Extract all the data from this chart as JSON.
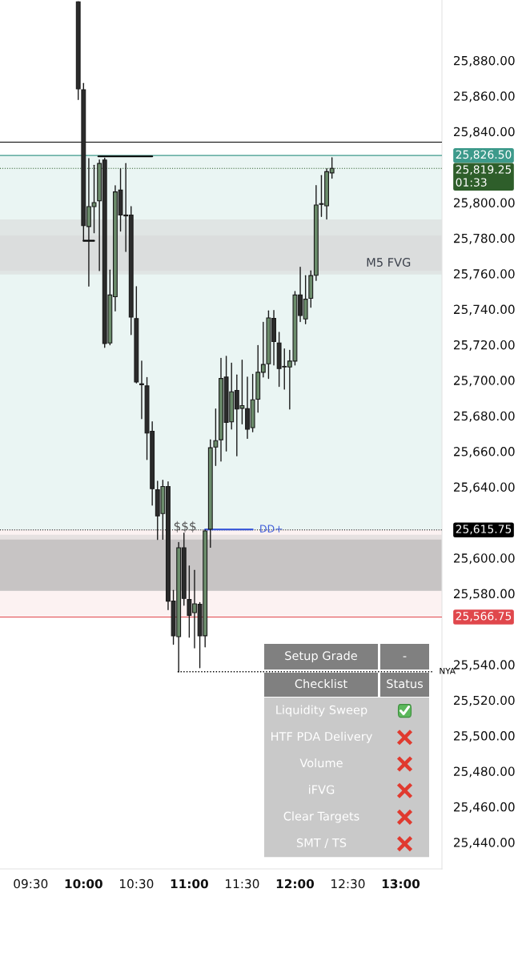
{
  "chart_data": {
    "type": "candlestick",
    "x": [
      9.95,
      10.0,
      10.05,
      10.1,
      10.15,
      10.2,
      10.25,
      10.3,
      10.35,
      10.4,
      10.45,
      10.5,
      10.55,
      10.6,
      10.65,
      10.7,
      10.75,
      10.8,
      10.85,
      10.9,
      10.95,
      11.0,
      11.05,
      11.1,
      11.15,
      11.2,
      11.25,
      11.3,
      11.35,
      11.4,
      11.45,
      11.5,
      11.55,
      11.6,
      11.65,
      11.7,
      11.75,
      11.8,
      11.85,
      11.9,
      11.95,
      12.0,
      12.05,
      12.1,
      12.15,
      12.2,
      12.25,
      12.3,
      12.35
    ],
    "ohlc": [
      [
        25913,
        25913,
        25858,
        25864
      ],
      [
        25863.5,
        25867,
        25778.4,
        25787
      ],
      [
        25786.5,
        25824.8,
        25753,
        25797.7
      ],
      [
        25797.7,
        25821,
        25783,
        25800
      ],
      [
        25801,
        25824,
        25761.7,
        25822
      ],
      [
        25824,
        25825,
        25718.5,
        25720.7
      ],
      [
        25721,
        25762,
        25720,
        25748
      ],
      [
        25747,
        25809.5,
        25739,
        25806
      ],
      [
        25807,
        25819,
        25784,
        25793
      ],
      [
        25793,
        25822,
        25772.5,
        25792.5
      ],
      [
        25793,
        25797.7,
        25725.7,
        25735.6
      ],
      [
        25734.7,
        25752.7,
        25698.5,
        25699
      ],
      [
        25698,
        25710.8,
        25678.4,
        25697.5
      ],
      [
        25696.8,
        25701.5,
        25655.4,
        25670.3
      ],
      [
        25671.3,
        25676.6,
        25629.7,
        25639
      ],
      [
        25638.4,
        25643.2,
        25610.4,
        25623.7
      ],
      [
        25625,
        25643.7,
        25610.5,
        25640.2
      ],
      [
        25640.2,
        25642.8,
        25570.9,
        25575.7
      ],
      [
        25575.7,
        25581.7,
        25551.4,
        25556.2
      ],
      [
        25555.7,
        25608.7,
        25535.9,
        25605.7
      ],
      [
        25605.7,
        25614,
        25573.4,
        25577.2
      ],
      [
        25576.6,
        25595.5,
        25555.4,
        25567.7
      ],
      [
        25569.2,
        25593,
        25549.4,
        25574.2
      ],
      [
        25573.9,
        25574.9,
        25538.2,
        25556.2
      ],
      [
        25556.2,
        25615.8,
        25549.9,
        25615.2
      ],
      [
        25616.2,
        25666.5,
        25606,
        25662
      ],
      [
        25662.4,
        25683.8,
        25652,
        25666
      ],
      [
        25666.5,
        25712.3,
        25654.5,
        25701
      ],
      [
        25701.8,
        25713.5,
        25660.2,
        25676.3
      ],
      [
        25676.6,
        25709.6,
        25672.5,
        25693.5
      ],
      [
        25694.3,
        25703,
        25657.5,
        25683.8
      ],
      [
        25684.2,
        25711.3,
        25675.5,
        25685.7
      ],
      [
        25684,
        25701.8,
        25667.3,
        25672.5
      ],
      [
        25673.3,
        25703.3,
        25671,
        25689
      ],
      [
        25689.3,
        25719.5,
        25682,
        25704.5
      ],
      [
        25704.5,
        25732.6,
        25701.8,
        25708.9
      ],
      [
        25709.3,
        25739,
        25701,
        25735.1
      ],
      [
        25734.8,
        25739.3,
        25708.6,
        25721.8
      ],
      [
        25721,
        25727,
        25696.5,
        25706.6
      ],
      [
        25707.8,
        25717.6,
        25695,
        25707.5
      ],
      [
        25707.5,
        25716.8,
        25683.8,
        25710.8
      ],
      [
        25710.8,
        25750,
        25708.6,
        25748
      ],
      [
        25748,
        25763.6,
        25733,
        25736.4
      ],
      [
        25734.5,
        25758.9,
        25731.8,
        25745.6
      ],
      [
        25746.1,
        25761.6,
        25741.1,
        25758.9
      ],
      [
        25759.1,
        25809.6,
        25756.2,
        25798.6
      ],
      [
        25799.4,
        25815.2,
        25792.2,
        25799
      ],
      [
        25798.2,
        25819,
        25790.7,
        25817.4
      ],
      [
        25816.7,
        25825.2,
        25813.7,
        25819.25
      ]
    ],
    "colors": [
      "#2b2b2b",
      "#2b2b2b",
      "#6b8c6b",
      "#6b8c6b",
      "#6b8c6b",
      "#2b2b2b",
      "#6b8c6b",
      "#6b8c6b",
      "#2b2b2b",
      "#2b2b2b",
      "#2b2b2b",
      "#2b2b2b",
      "#2b2b2b",
      "#2b2b2b",
      "#2b2b2b",
      "#2b2b2b",
      "#6b8c6b",
      "#2b2b2b",
      "#2b2b2b",
      "#6b8c6b",
      "#2b2b2b",
      "#2b2b2b",
      "#6b8c6b",
      "#2b2b2b",
      "#6b8c6b",
      "#6b8c6b",
      "#6b8c6b",
      "#6b8c6b",
      "#2b2b2b",
      "#6b8c6b",
      "#2b2b2b",
      "#6b8c6b",
      "#2b2b2b",
      "#6b8c6b",
      "#6b8c6b",
      "#6b8c6b",
      "#6b8c6b",
      "#2b2b2b",
      "#2b2b2b",
      "#2b2b2b",
      "#6b8c6b",
      "#6b8c6b",
      "#2b2b2b",
      "#6b8c6b",
      "#6b8c6b",
      "#6b8c6b",
      "#2b2b2b",
      "#6b8c6b",
      "#6b8c6b"
    ],
    "series": [
      {
        "type": "line",
        "x": [
          10.14,
          10.65
        ],
        "values": [
          25826,
          25826
        ],
        "color": "#000000"
      },
      {
        "type": "line",
        "x": [
          10.0,
          10.1
        ],
        "values": [
          25778.5,
          25778.5
        ],
        "color": "#000000"
      },
      {
        "type": "line",
        "x": [
          11.15,
          11.6
        ],
        "values": [
          25616,
          25616
        ],
        "color": "#3d5bd9",
        "name": "DD+"
      },
      {
        "type": "line",
        "x": [
          10.89,
          13.3
        ],
        "values": [
          25536,
          25536
        ],
        "color": "#000000",
        "line_style": "dotted",
        "name": "NYA"
      }
    ],
    "xlim": [
      9.21,
      13.39
    ],
    "xticks": [
      {
        "value": 9.5,
        "label": "09:30"
      },
      {
        "value": 10,
        "label": "10:00"
      },
      {
        "value": 10.5,
        "label": "10:30"
      },
      {
        "value": 11,
        "label": "11:00"
      },
      {
        "value": 11.5,
        "label": "11:30"
      },
      {
        "value": 12,
        "label": "12:00"
      },
      {
        "value": 12.5,
        "label": "12:30"
      },
      {
        "value": 13,
        "label": "13:00"
      }
    ],
    "ylim": [
      25425,
      25914
    ],
    "yticks": [
      {
        "value": 25440,
        "label": "25,440.00"
      },
      {
        "value": 25460,
        "label": "25,460.00"
      },
      {
        "value": 25480,
        "label": "25,480.00"
      },
      {
        "value": 25500,
        "label": "25,500.00"
      },
      {
        "value": 25520,
        "label": "25,520.00"
      },
      {
        "value": 25540,
        "label": "25,540.00"
      },
      {
        "value": 25580,
        "label": "25,580.00"
      },
      {
        "value": 25600,
        "label": "25,600.00"
      },
      {
        "value": 25640,
        "label": "25,640.00"
      },
      {
        "value": 25660,
        "label": "25,660.00"
      },
      {
        "value": 25680,
        "label": "25,680.00"
      },
      {
        "value": 25700,
        "label": "25,700.00"
      },
      {
        "value": 25720,
        "label": "25,720.00"
      },
      {
        "value": 25740,
        "label": "25,740.00"
      },
      {
        "value": 25760,
        "label": "25,760.00"
      },
      {
        "value": 25780,
        "label": "25,780.00"
      },
      {
        "value": 25800,
        "label": "25,800.00"
      },
      {
        "value": 25840,
        "label": "25,840.00"
      },
      {
        "value": 25860,
        "label": "25,860.00"
      },
      {
        "value": 25880,
        "label": "25,880.00"
      }
    ],
    "ref_lines": [
      {
        "axis": "y",
        "value": 25834,
        "color": "#000000",
        "line_style": "solid"
      },
      {
        "axis": "y",
        "value": 25826.5,
        "label": "25,826.50",
        "color": "#3d9a8b",
        "line_style": "solid"
      },
      {
        "axis": "y",
        "value": 25819.25,
        "label": "25,819.25\n01:33",
        "color": "#2e5e2a",
        "line_style": "dotted"
      },
      {
        "axis": "y",
        "value": 25615.75,
        "label": "25,615.75",
        "color": "#000000",
        "line_style": "dotted"
      },
      {
        "axis": "y",
        "value": 25566.75,
        "label": "25,566.75",
        "color": "#e0474c",
        "line_style": "solid"
      }
    ],
    "bands": [
      {
        "axis": "y",
        "from": 25615.75,
        "to": 25826.5,
        "color": "#d5ebe7"
      },
      {
        "axis": "y",
        "from": 25566.75,
        "to": 25615.75,
        "color": "#fae5e6"
      },
      {
        "axis": "y",
        "from": 25761.7,
        "to": 25781.5,
        "color": "#d6d6d6"
      },
      {
        "axis": "y",
        "from": 25759.5,
        "to": 25790.5,
        "color": "#d6d6d6",
        "label": "M5 FVG"
      },
      {
        "axis": "y",
        "from": 25581.5,
        "to": 25613,
        "color": "#cfcfcf"
      },
      {
        "axis": "y",
        "from": 25581.5,
        "to": 25610.4,
        "color": "#a8a8a8"
      }
    ],
    "annotations": [
      "Setup Grade",
      "-",
      "Checklist",
      "Status",
      "Liquidity Sweep",
      "HTF PDA Delivery",
      "Volume",
      "iFVG",
      "Clear Targets",
      "SMT / TS",
      {
        "text": "$$$",
        "x": 10.96,
        "y": 25614
      }
    ],
    "grid": false
  }
}
